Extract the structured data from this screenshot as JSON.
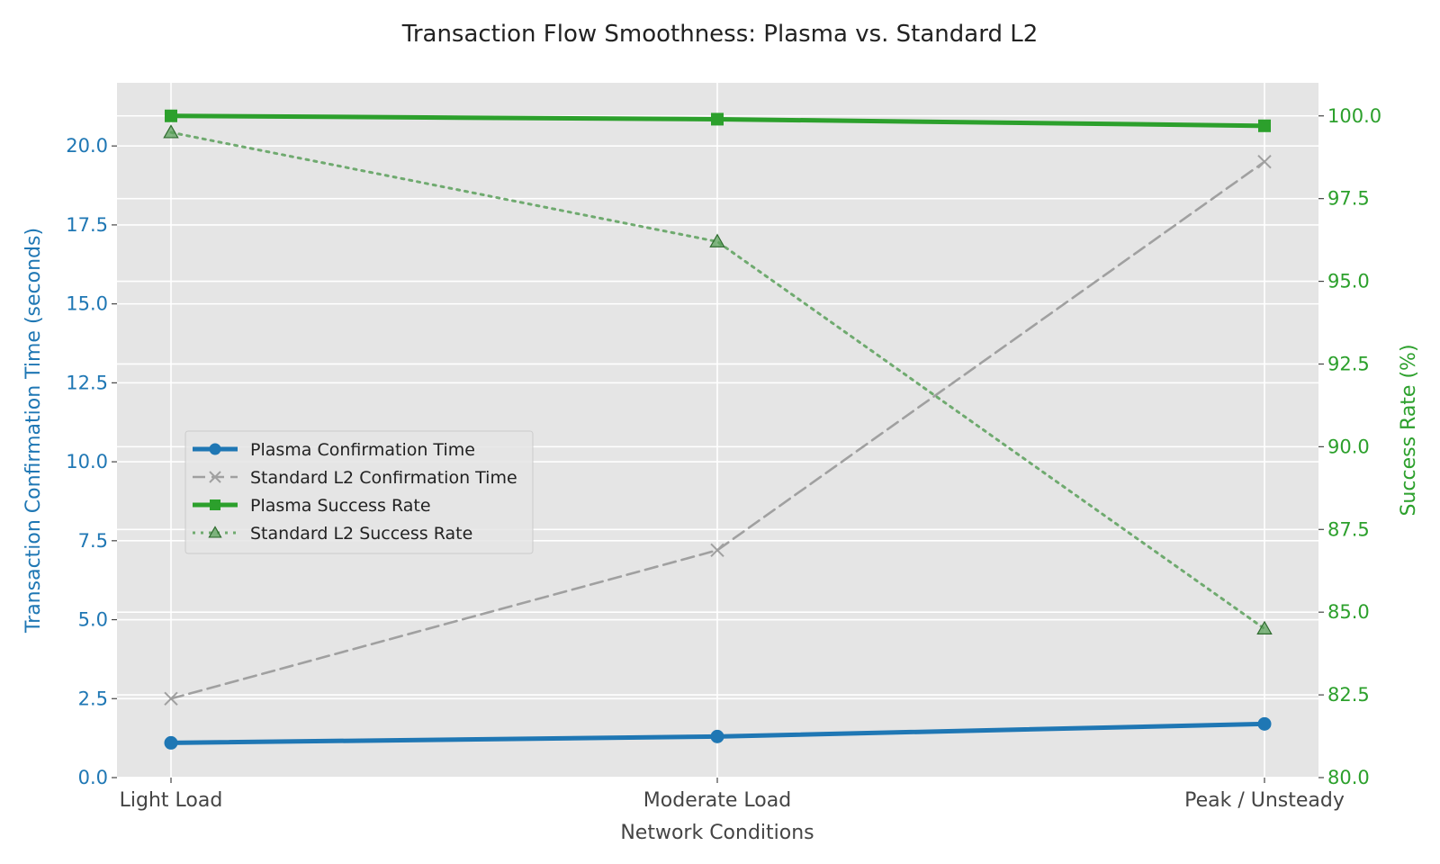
{
  "chart_data": {
    "type": "line",
    "title": "Transaction Flow Smoothness: Plasma vs. Standard L2",
    "xlabel": "Network Conditions",
    "ylabel_left": "Transaction Confirmation Time (seconds)",
    "ylabel_right": "Success Rate (%)",
    "categories": [
      "Light Load",
      "Moderate Load",
      "Peak / Unsteady"
    ],
    "ylim_left": [
      0,
      22
    ],
    "ylim_right": [
      80,
      101
    ],
    "yticks_left": [
      0.0,
      2.5,
      5.0,
      7.5,
      10.0,
      12.5,
      15.0,
      17.5,
      20.0
    ],
    "yticks_right": [
      80.0,
      82.5,
      85.0,
      87.5,
      90.0,
      92.5,
      95.0,
      97.5,
      100.0
    ],
    "left_axis_color": "#1f77b4",
    "right_axis_color": "#2ca02c",
    "background_color": "#e5e5e5",
    "grid": true,
    "legend_position": "center-left",
    "series": [
      {
        "name": "Plasma Confirmation Time",
        "axis": "left",
        "values": [
          1.1,
          1.3,
          1.7
        ],
        "color": "#1f77b4",
        "marker": "circle",
        "line_style": "solid"
      },
      {
        "name": "Standard L2 Confirmation Time",
        "axis": "left",
        "values": [
          2.5,
          7.2,
          19.5
        ],
        "color": "#a0a0a0",
        "marker": "x",
        "line_style": "dashed"
      },
      {
        "name": "Plasma Success Rate",
        "axis": "right",
        "values": [
          100.0,
          99.9,
          99.7
        ],
        "color": "#2ca02c",
        "marker": "square",
        "line_style": "solid"
      },
      {
        "name": "Standard L2 Success Rate",
        "axis": "right",
        "values": [
          99.5,
          96.2,
          84.5
        ],
        "color": "#5aa05a",
        "marker": "triangle",
        "line_style": "dotted"
      }
    ]
  }
}
